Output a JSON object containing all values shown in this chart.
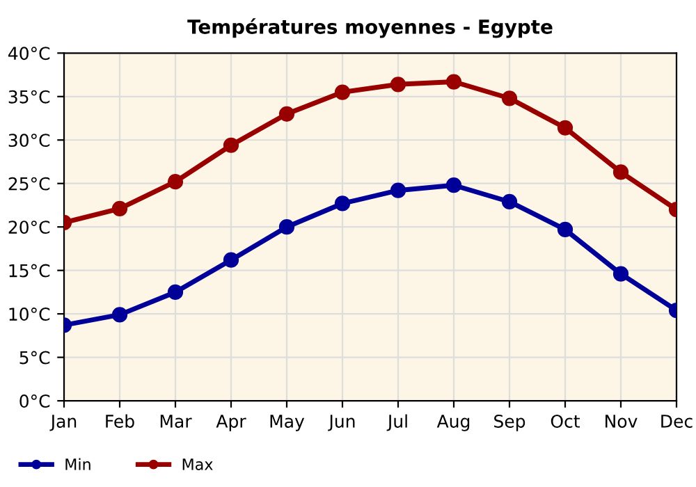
{
  "chart_data": {
    "type": "line",
    "title": "Températures moyennes - Egypte",
    "categories": [
      "Jan",
      "Feb",
      "Mar",
      "Apr",
      "May",
      "Jun",
      "Jul",
      "Aug",
      "Sep",
      "Oct",
      "Nov",
      "Dec"
    ],
    "series": [
      {
        "name": "Min",
        "color": "#000099",
        "values": [
          8.7,
          9.9,
          12.5,
          16.2,
          20.0,
          22.7,
          24.2,
          24.8,
          22.9,
          19.7,
          14.6,
          10.4
        ]
      },
      {
        "name": "Max",
        "color": "#990000",
        "values": [
          20.5,
          22.1,
          25.2,
          29.4,
          33.0,
          35.5,
          36.4,
          36.7,
          34.8,
          31.4,
          26.3,
          22.0
        ]
      }
    ],
    "ylim": [
      0,
      40
    ],
    "yticks": [
      {
        "value": 0,
        "label": "0°C"
      },
      {
        "value": 5,
        "label": "5°C"
      },
      {
        "value": 10,
        "label": "10°C"
      },
      {
        "value": 15,
        "label": "15°C"
      },
      {
        "value": 20,
        "label": "20°C"
      },
      {
        "value": 25,
        "label": "25°C"
      },
      {
        "value": 30,
        "label": "30°C"
      },
      {
        "value": 35,
        "label": "35°C"
      },
      {
        "value": 40,
        "label": "40°C"
      }
    ],
    "grid": true,
    "legend": "bottom left",
    "marker": "circle",
    "line_style": "solid"
  }
}
